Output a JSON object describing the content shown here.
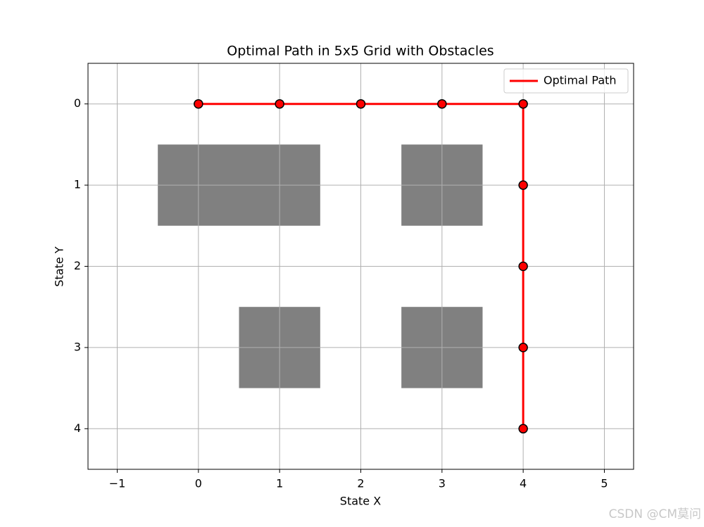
{
  "chart_data": {
    "type": "line",
    "title": "Optimal Path in 5x5 Grid with Obstacles",
    "x_label": "State X",
    "y_label": "State Y",
    "xlim": [
      -1.36,
      5.36
    ],
    "ylim": [
      4.5,
      -0.5
    ],
    "xticks": [
      {
        "value": -1,
        "label": "−1"
      },
      0,
      1,
      2,
      3,
      4,
      5
    ],
    "yticks": [
      0,
      1,
      2,
      3,
      4
    ],
    "grid": true,
    "legend": "upper right",
    "obstacle_color": "#808080",
    "obstacles": [
      {
        "x": 0,
        "y": 1
      },
      {
        "x": 1,
        "y": 1
      },
      {
        "x": 3,
        "y": 1
      },
      {
        "x": 1,
        "y": 3
      },
      {
        "x": 3,
        "y": 3
      }
    ],
    "series": [
      {
        "name": "Optimal Path",
        "color": "#ff0000",
        "marker_edge": "#000000",
        "x": [
          0,
          1,
          2,
          3,
          4,
          4,
          4,
          4,
          4
        ],
        "values": [
          0,
          0,
          0,
          0,
          0,
          1,
          2,
          3,
          4
        ]
      }
    ]
  },
  "watermark": "CSDN @CM莫问"
}
